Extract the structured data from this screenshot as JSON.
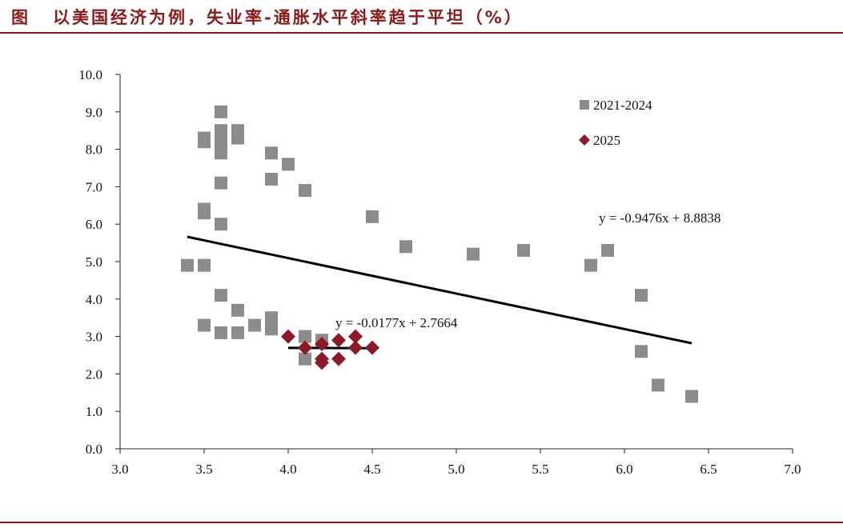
{
  "header": {
    "prefix": "图",
    "title": "以美国经济为例，失业率-通胀水平斜率趋于平坦（%）"
  },
  "colors": {
    "accent": "#8b1a1a",
    "series_2021_2024": "#8c8c8c",
    "series_2025": "#8b1a2b",
    "axis": "#222222",
    "trend": "#000000"
  },
  "chart_data": {
    "type": "scatter",
    "title": "以美国经济为例，失业率-通胀水平斜率趋于平坦（%）",
    "xlabel": "",
    "ylabel": "",
    "xlim": [
      3.0,
      7.0
    ],
    "ylim": [
      0.0,
      10.0
    ],
    "x_ticks": [
      "3.0",
      "3.5",
      "4.0",
      "4.5",
      "5.0",
      "5.5",
      "6.0",
      "6.5",
      "7.0"
    ],
    "y_ticks": [
      "0.0",
      "1.0",
      "2.0",
      "3.0",
      "4.0",
      "5.0",
      "6.0",
      "7.0",
      "8.0",
      "9.0",
      "10.0"
    ],
    "legend_position": "top-right",
    "series": [
      {
        "name": "2021-2024",
        "marker": "square",
        "points": [
          [
            3.4,
            4.9
          ],
          [
            3.5,
            4.9
          ],
          [
            3.5,
            3.3
          ],
          [
            3.5,
            6.3
          ],
          [
            3.5,
            6.4
          ],
          [
            3.5,
            8.2
          ],
          [
            3.5,
            8.3
          ],
          [
            3.6,
            9.0
          ],
          [
            3.6,
            8.5
          ],
          [
            3.6,
            8.3
          ],
          [
            3.6,
            8.2
          ],
          [
            3.6,
            7.9
          ],
          [
            3.6,
            7.1
          ],
          [
            3.6,
            6.0
          ],
          [
            3.6,
            4.1
          ],
          [
            3.6,
            3.1
          ],
          [
            3.7,
            8.5
          ],
          [
            3.7,
            8.3
          ],
          [
            3.7,
            3.7
          ],
          [
            3.7,
            3.1
          ],
          [
            3.8,
            3.3
          ],
          [
            3.9,
            7.9
          ],
          [
            3.9,
            7.2
          ],
          [
            3.9,
            3.5
          ],
          [
            3.9,
            3.2
          ],
          [
            4.0,
            7.6
          ],
          [
            4.1,
            6.9
          ],
          [
            4.1,
            3.0
          ],
          [
            4.1,
            2.4
          ],
          [
            4.2,
            2.9
          ],
          [
            4.5,
            6.2
          ],
          [
            4.7,
            5.4
          ],
          [
            5.1,
            5.2
          ],
          [
            5.4,
            5.3
          ],
          [
            5.8,
            4.9
          ],
          [
            5.9,
            5.3
          ],
          [
            6.1,
            4.1
          ],
          [
            6.1,
            2.6
          ],
          [
            6.2,
            1.7
          ],
          [
            6.4,
            1.4
          ]
        ]
      },
      {
        "name": "2025",
        "marker": "diamond",
        "points": [
          [
            4.0,
            3.0
          ],
          [
            4.1,
            2.7
          ],
          [
            4.2,
            2.8
          ],
          [
            4.2,
            2.4
          ],
          [
            4.2,
            2.3
          ],
          [
            4.3,
            2.9
          ],
          [
            4.3,
            2.4
          ],
          [
            4.4,
            3.0
          ],
          [
            4.4,
            2.7
          ],
          [
            4.5,
            2.7
          ]
        ]
      }
    ],
    "trendlines": [
      {
        "name": "trend-2021-2024",
        "equation": "y = -0.9476x + 8.8838",
        "slope": -0.9476,
        "intercept": 8.8838,
        "x_range": [
          3.4,
          6.4
        ]
      },
      {
        "name": "trend-2025",
        "equation": "y = -0.0177x + 2.7664",
        "slope": -0.0177,
        "intercept": 2.7664,
        "x_range": [
          4.0,
          4.5
        ]
      }
    ]
  }
}
